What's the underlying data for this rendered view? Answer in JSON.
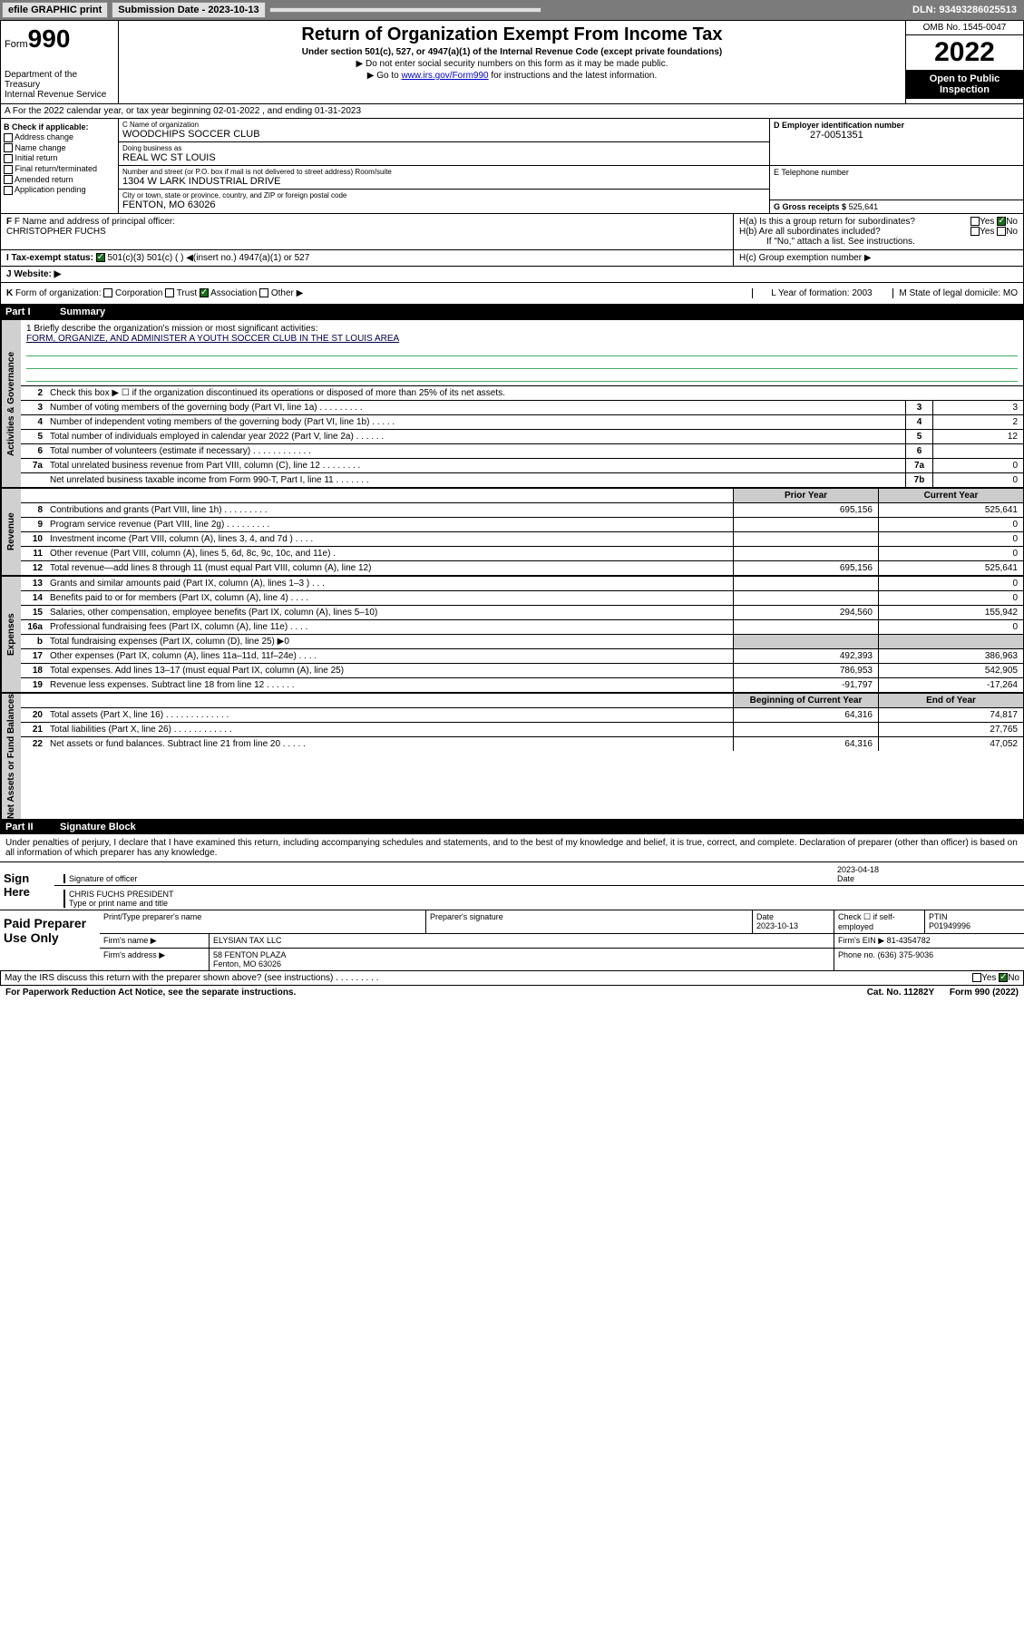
{
  "topbar": {
    "efile": "efile GRAPHIC print",
    "sub_label": "Submission Date - 2023-10-13",
    "dln": "DLN: 93493286025513"
  },
  "header": {
    "form_word": "Form",
    "form_no": "990",
    "title": "Return of Organization Exempt From Income Tax",
    "subtitle": "Under section 501(c), 527, or 4947(a)(1) of the Internal Revenue Code (except private foundations)",
    "note1": "▶ Do not enter social security numbers on this form as it may be made public.",
    "note2_pre": "▶ Go to ",
    "note2_link": "www.irs.gov/Form990",
    "note2_post": " for instructions and the latest information.",
    "dept": "Department of the Treasury",
    "irs": "Internal Revenue Service",
    "omb": "OMB No. 1545-0047",
    "year": "2022",
    "open": "Open to Public Inspection"
  },
  "row_a": "A For the 2022 calendar year, or tax year beginning 02-01-2022   , and ending 01-31-2023",
  "col_b": {
    "hdr": "B Check if applicable:",
    "items": [
      "Address change",
      "Name change",
      "Initial return",
      "Final return/terminated",
      "Amended return",
      "Application pending"
    ]
  },
  "col_c": {
    "name_lbl": "C Name of organization",
    "name": "WOODCHIPS SOCCER CLUB",
    "dba_lbl": "Doing business as",
    "dba": "REAL WC ST LOUIS",
    "addr_lbl": "Number and street (or P.O. box if mail is not delivered to street address)        Room/suite",
    "addr": "1304 W LARK INDUSTRIAL DRIVE",
    "city_lbl": "City or town, state or province, country, and ZIP or foreign postal code",
    "city": "FENTON, MO  63026"
  },
  "col_de": {
    "d_lbl": "D Employer identification number",
    "d_val": "27-0051351",
    "e_lbl": "E Telephone number",
    "g_lbl": "G Gross receipts $",
    "g_val": "525,641"
  },
  "col_f": {
    "lbl": "F Name and address of principal officer:",
    "val": "CHRISTOPHER FUCHS"
  },
  "col_h": {
    "ha": "H(a)  Is this a group return for subordinates?",
    "hb": "H(b)  Are all subordinates included?",
    "hb_note": "If \"No,\" attach a list. See instructions.",
    "hc": "H(c)  Group exemption number ▶",
    "yes": "Yes",
    "no": "No"
  },
  "row_i": {
    "lbl": "I   Tax-exempt status:",
    "opts": "501(c)(3)       501(c) (  ) ◀(insert no.)       4947(a)(1) or       527"
  },
  "row_j": "J   Website: ▶",
  "row_k": {
    "left": "K Form of organization:      Corporation      Trust      Association      Other ▶",
    "l": "L Year of formation: 2003",
    "m": "M State of legal domicile: MO"
  },
  "part1": {
    "num": "Part I",
    "title": "Summary"
  },
  "mission": {
    "lbl": "1  Briefly describe the organization's mission or most significant activities:",
    "text": "FORM, ORGANIZE, AND ADMINISTER A YOUTH SOCCER CLUB IN THE ST LOUIS AREA"
  },
  "vtabs": {
    "gov": "Activities & Governance",
    "rev": "Revenue",
    "exp": "Expenses",
    "net": "Net Assets or Fund Balances"
  },
  "gov_lines": [
    {
      "n": "2",
      "t": "Check this box ▶ ☐  if the organization discontinued its operations or disposed of more than 25% of its net assets."
    },
    {
      "n": "3",
      "t": "Number of voting members of the governing body (Part VI, line 1a)   .    .    .    .    .    .    .    .    .",
      "bn": "3",
      "bv": "3"
    },
    {
      "n": "4",
      "t": "Number of independent voting members of the governing body (Part VI, line 1b)   .    .    .    .    .",
      "bn": "4",
      "bv": "2"
    },
    {
      "n": "5",
      "t": "Total number of individuals employed in calendar year 2022 (Part V, line 2a)   .    .    .    .    .    .",
      "bn": "5",
      "bv": "12"
    },
    {
      "n": "6",
      "t": "Total number of volunteers (estimate if necessary)   .    .    .    .    .    .    .    .    .    .    .    .",
      "bn": "6",
      "bv": ""
    },
    {
      "n": "7a",
      "t": "Total unrelated business revenue from Part VIII, column (C), line 12   .    .    .    .    .    .    .    .",
      "bn": "7a",
      "bv": "0"
    },
    {
      "n": "",
      "t": "Net unrelated business taxable income from Form 990-T, Part I, line 11   .    .    .    .    .    .    .",
      "bn": "7b",
      "bv": "0"
    }
  ],
  "yr_hdr": {
    "py": "Prior Year",
    "cy": "Current Year"
  },
  "rev_lines": [
    {
      "n": "8",
      "t": "Contributions and grants (Part VIII, line 1h)   .    .    .    .    .    .    .    .    .",
      "py": "695,156",
      "cy": "525,641"
    },
    {
      "n": "9",
      "t": "Program service revenue (Part VIII, line 2g)   .    .    .    .    .    .    .    .    .",
      "py": "",
      "cy": "0"
    },
    {
      "n": "10",
      "t": "Investment income (Part VIII, column (A), lines 3, 4, and 7d )   .    .    .    .",
      "py": "",
      "cy": "0"
    },
    {
      "n": "11",
      "t": "Other revenue (Part VIII, column (A), lines 5, 6d, 8c, 9c, 10c, and 11e)    .",
      "py": "",
      "cy": "0"
    },
    {
      "n": "12",
      "t": "Total revenue—add lines 8 through 11 (must equal Part VIII, column (A), line 12)",
      "py": "695,156",
      "cy": "525,641"
    }
  ],
  "exp_lines": [
    {
      "n": "13",
      "t": "Grants and similar amounts paid (Part IX, column (A), lines 1–3 )   .    .    .",
      "py": "",
      "cy": "0"
    },
    {
      "n": "14",
      "t": "Benefits paid to or for members (Part IX, column (A), line 4)   .    .    .    .",
      "py": "",
      "cy": "0"
    },
    {
      "n": "15",
      "t": "Salaries, other compensation, employee benefits (Part IX, column (A), lines 5–10)",
      "py": "294,560",
      "cy": "155,942"
    },
    {
      "n": "16a",
      "t": "Professional fundraising fees (Part IX, column (A), line 11e)   .    .    .    .",
      "py": "",
      "cy": "0"
    },
    {
      "n": "b",
      "t": "Total fundraising expenses (Part IX, column (D), line 25) ▶0",
      "py": "",
      "cy": "",
      "grey": true
    },
    {
      "n": "17",
      "t": "Other expenses (Part IX, column (A), lines 11a–11d, 11f–24e)   .    .    .    .",
      "py": "492,393",
      "cy": "386,963"
    },
    {
      "n": "18",
      "t": "Total expenses. Add lines 13–17 (must equal Part IX, column (A), line 25)",
      "py": "786,953",
      "cy": "542,905"
    },
    {
      "n": "19",
      "t": "Revenue less expenses. Subtract line 18 from line 12   .    .    .    .    .    .",
      "py": "-91,797",
      "cy": "-17,264"
    }
  ],
  "net_hdr": {
    "py": "Beginning of Current Year",
    "cy": "End of Year"
  },
  "net_lines": [
    {
      "n": "20",
      "t": "Total assets (Part X, line 16)   .    .    .    .    .    .    .    .    .    .    .    .    .",
      "py": "64,316",
      "cy": "74,817"
    },
    {
      "n": "21",
      "t": "Total liabilities (Part X, line 26)   .    .    .    .    .    .    .    .    .    .    .    .",
      "py": "",
      "cy": "27,765"
    },
    {
      "n": "22",
      "t": "Net assets or fund balances. Subtract line 21 from line 20   .    .    .    .    .",
      "py": "64,316",
      "cy": "47,052"
    }
  ],
  "part2": {
    "num": "Part II",
    "title": "Signature Block"
  },
  "sig_decl": "Under penalties of perjury, I declare that I have examined this return, including accompanying schedules and statements, and to the best of my knowledge and belief, it is true, correct, and complete. Declaration of preparer (other than officer) is based on all information of which preparer has any knowledge.",
  "sign": {
    "here": "Sign Here",
    "sig_lbl": "Signature of officer",
    "date": "2023-04-18",
    "date_lbl": "Date",
    "name": "CHRIS FUCHS  PRESIDENT",
    "name_lbl": "Type or print name and title"
  },
  "paid": {
    "title": "Paid Preparer Use Only",
    "h1": "Print/Type preparer's name",
    "h2": "Preparer's signature",
    "h3": "Date",
    "h3v": "2023-10-13",
    "h4": "Check ☐ if self-employed",
    "h5": "PTIN",
    "h5v": "P01949996",
    "firm_lbl": "Firm's name    ▶",
    "firm": "ELYSIAN TAX LLC",
    "ein_lbl": "Firm's EIN ▶",
    "ein": "81-4354782",
    "addr_lbl": "Firm's address ▶",
    "addr1": "58 FENTON PLAZA",
    "addr2": "Fenton, MO  63026",
    "phone_lbl": "Phone no.",
    "phone": "(636) 375-9036"
  },
  "may_irs": "May the IRS discuss this return with the preparer shown above? (see instructions)   .    .    .    .    .    .    .    .    .",
  "footer": {
    "left": "For Paperwork Reduction Act Notice, see the separate instructions.",
    "mid": "Cat. No. 11282Y",
    "right": "Form 990 (2022)"
  }
}
